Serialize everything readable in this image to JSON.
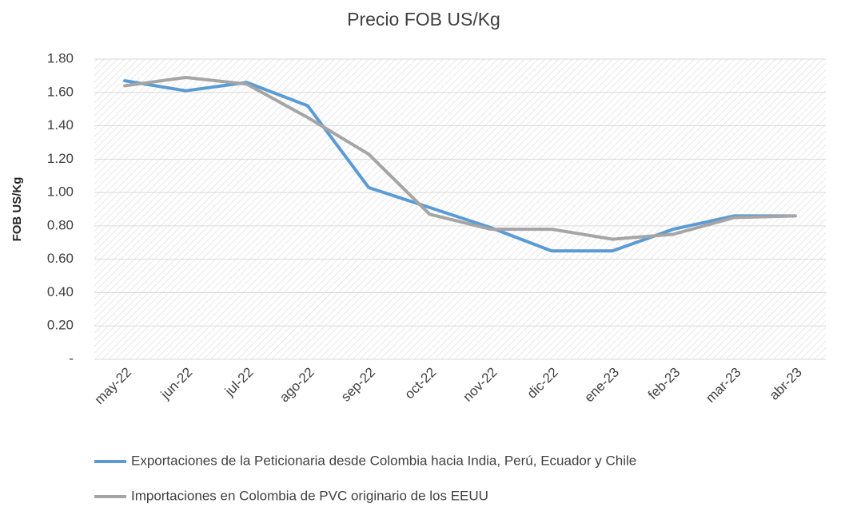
{
  "chart_data": {
    "type": "line",
    "title": "Precio FOB US/Kg",
    "y_label": "FOB US/Kg",
    "categories": [
      "may-22",
      "jun-22",
      "jul-22",
      "ago-22",
      "sep-22",
      "oct-22",
      "nov-22",
      "dic-22",
      "ene-23",
      "feb-23",
      "mar-23",
      "abr-23"
    ],
    "series": [
      {
        "name": "Exportaciones de la Peticionaria desde Colombia hacia India, Perú, Ecuador y Chile",
        "color": "#5b9bd5",
        "values": [
          1.67,
          1.61,
          1.66,
          1.52,
          1.03,
          0.91,
          0.79,
          0.65,
          0.65,
          0.78,
          0.86,
          0.86
        ]
      },
      {
        "name": "Importaciones en Colombia de PVC originario de los EEUU",
        "color": "#a5a5a5",
        "values": [
          1.64,
          1.69,
          1.65,
          1.45,
          1.23,
          0.87,
          0.78,
          0.78,
          0.72,
          0.75,
          0.85,
          0.86
        ]
      }
    ],
    "ylim": [
      0,
      1.8
    ],
    "yticks": [
      {
        "value": 0,
        "label": "-"
      },
      {
        "value": 0.2,
        "label": "0.20"
      },
      {
        "value": 0.4,
        "label": "0.40"
      },
      {
        "value": 0.6,
        "label": "0.60"
      },
      {
        "value": 0.8,
        "label": "0.80"
      },
      {
        "value": 1.0,
        "label": "1.00"
      },
      {
        "value": 1.2,
        "label": "1.20"
      },
      {
        "value": 1.4,
        "label": "1.40"
      },
      {
        "value": 1.6,
        "label": "1.60"
      },
      {
        "value": 1.8,
        "label": "1.80"
      }
    ],
    "grid": true,
    "legend": "bottom"
  }
}
